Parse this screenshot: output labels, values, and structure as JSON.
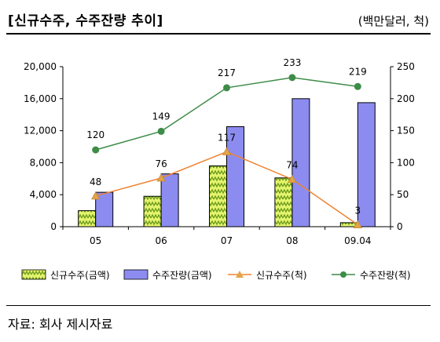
{
  "header": {
    "title": "[신규수주, 수주잔량 추이]",
    "unit": "(백만달러, 척)"
  },
  "source": "자료: 회사 제시자료",
  "chart_data": {
    "type": "bar",
    "categories": [
      "05",
      "06",
      "07",
      "08",
      "09.04"
    ],
    "series": [
      {
        "name": "신규수주(금액)",
        "kind": "bar",
        "axis": "left",
        "values": [
          2000,
          3800,
          7600,
          6100,
          500
        ]
      },
      {
        "name": "수주잔량(금액)",
        "kind": "bar",
        "axis": "left",
        "values": [
          4300,
          6600,
          12500,
          16000,
          15500
        ]
      },
      {
        "name": "신규수주(척)",
        "kind": "line",
        "axis": "right",
        "values": [
          48,
          76,
          117,
          74,
          3
        ]
      },
      {
        "name": "수주잔량(척)",
        "kind": "line",
        "axis": "right",
        "values": [
          120,
          149,
          217,
          233,
          219
        ]
      }
    ],
    "y_left": {
      "min": 0,
      "max": 20000,
      "ticks": [
        "0",
        "4,000",
        "8,000",
        "12,000",
        "16,000",
        "20,000"
      ]
    },
    "y_right": {
      "min": 0,
      "max": 250,
      "ticks": [
        "0",
        "50",
        "100",
        "150",
        "200",
        "250"
      ]
    },
    "colors": {
      "new_order_bar": "#e6f56e",
      "new_order_pattern": "#6a9a1c",
      "backlog_bar": "#8c8cf0",
      "new_order_line": "#ee8332",
      "new_order_marker": "#e3a44a",
      "backlog_line": "#3d8c48",
      "backlog_marker": "#3d8c48"
    },
    "legend_position": "bottom"
  }
}
